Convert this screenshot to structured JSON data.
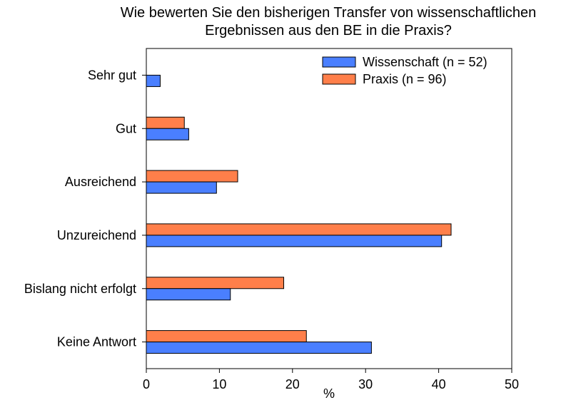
{
  "chart_data": {
    "type": "bar",
    "orientation": "horizontal",
    "title_lines": [
      "Wie bewerten Sie den bisherigen Transfer von wissenschaftlichen",
      "Ergebnissen aus den BE in die Praxis?"
    ],
    "xlabel": "%",
    "ylabel": "",
    "xlim": [
      0,
      50
    ],
    "xticks": [
      0,
      10,
      20,
      30,
      40,
      50
    ],
    "categories": [
      "Sehr gut",
      "Gut",
      "Ausreichend",
      "Unzureichend",
      "Bislang nicht erfolgt",
      "Keine Antwort"
    ],
    "series": [
      {
        "name": "Wissenschaft (n = 52)",
        "color": "#4a7fff",
        "values": [
          1.9,
          5.8,
          9.6,
          40.4,
          11.5,
          30.8
        ]
      },
      {
        "name": "Praxis (n = 96)",
        "color": "#ff7f4a",
        "values": [
          0,
          5.2,
          12.5,
          41.7,
          18.8,
          21.9
        ]
      }
    ],
    "legend_position": "top-right",
    "grid": false
  }
}
